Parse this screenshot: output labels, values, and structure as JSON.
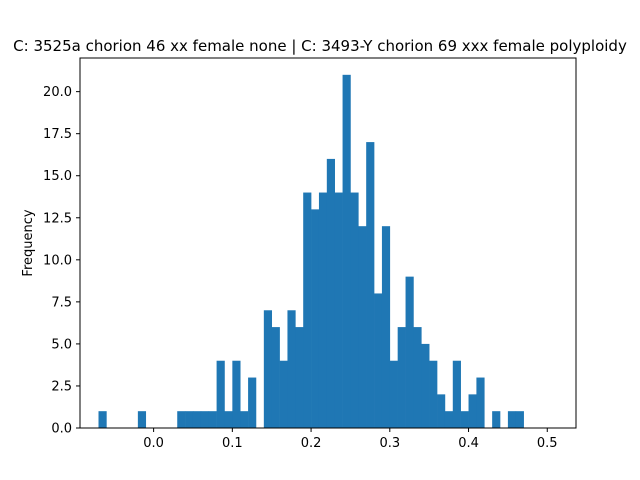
{
  "chart_data": {
    "type": "bar",
    "title": "C: 3525a chorion 46 xx female none | C: 3493-Y chorion 69 xxx female polyploidy",
    "xlabel": "",
    "ylabel": "Frequency",
    "xlim": [
      -0.0935,
      0.5365
    ],
    "ylim": [
      0,
      22
    ],
    "grid": false,
    "legend": "none",
    "bar_color": "#1f77b4",
    "bin_width": 0.01,
    "bins_start": -0.07,
    "counts": [
      1,
      0,
      0,
      0,
      0,
      1,
      0,
      0,
      0,
      0,
      1,
      1,
      1,
      1,
      1,
      4,
      1,
      4,
      1,
      3,
      0,
      7,
      6,
      4,
      7,
      6,
      14,
      13,
      14,
      16,
      14,
      21,
      14,
      12,
      17,
      8,
      12,
      4,
      6,
      9,
      6,
      5,
      4,
      2,
      1,
      4,
      1,
      2,
      3,
      0,
      1,
      0,
      1,
      1
    ],
    "x_ticks": [
      {
        "value": 0.0,
        "label": "0.0"
      },
      {
        "value": 0.1,
        "label": "0.1"
      },
      {
        "value": 0.2,
        "label": "0.2"
      },
      {
        "value": 0.3,
        "label": "0.3"
      },
      {
        "value": 0.4,
        "label": "0.4"
      },
      {
        "value": 0.5,
        "label": "0.5"
      }
    ],
    "y_ticks": [
      {
        "value": 0.0,
        "label": "0.0"
      },
      {
        "value": 2.5,
        "label": "2.5"
      },
      {
        "value": 5.0,
        "label": "5.0"
      },
      {
        "value": 7.5,
        "label": "7.5"
      },
      {
        "value": 10.0,
        "label": "10.0"
      },
      {
        "value": 12.5,
        "label": "12.5"
      },
      {
        "value": 15.0,
        "label": "15.0"
      },
      {
        "value": 17.5,
        "label": "17.5"
      },
      {
        "value": 20.0,
        "label": "20.0"
      }
    ]
  }
}
